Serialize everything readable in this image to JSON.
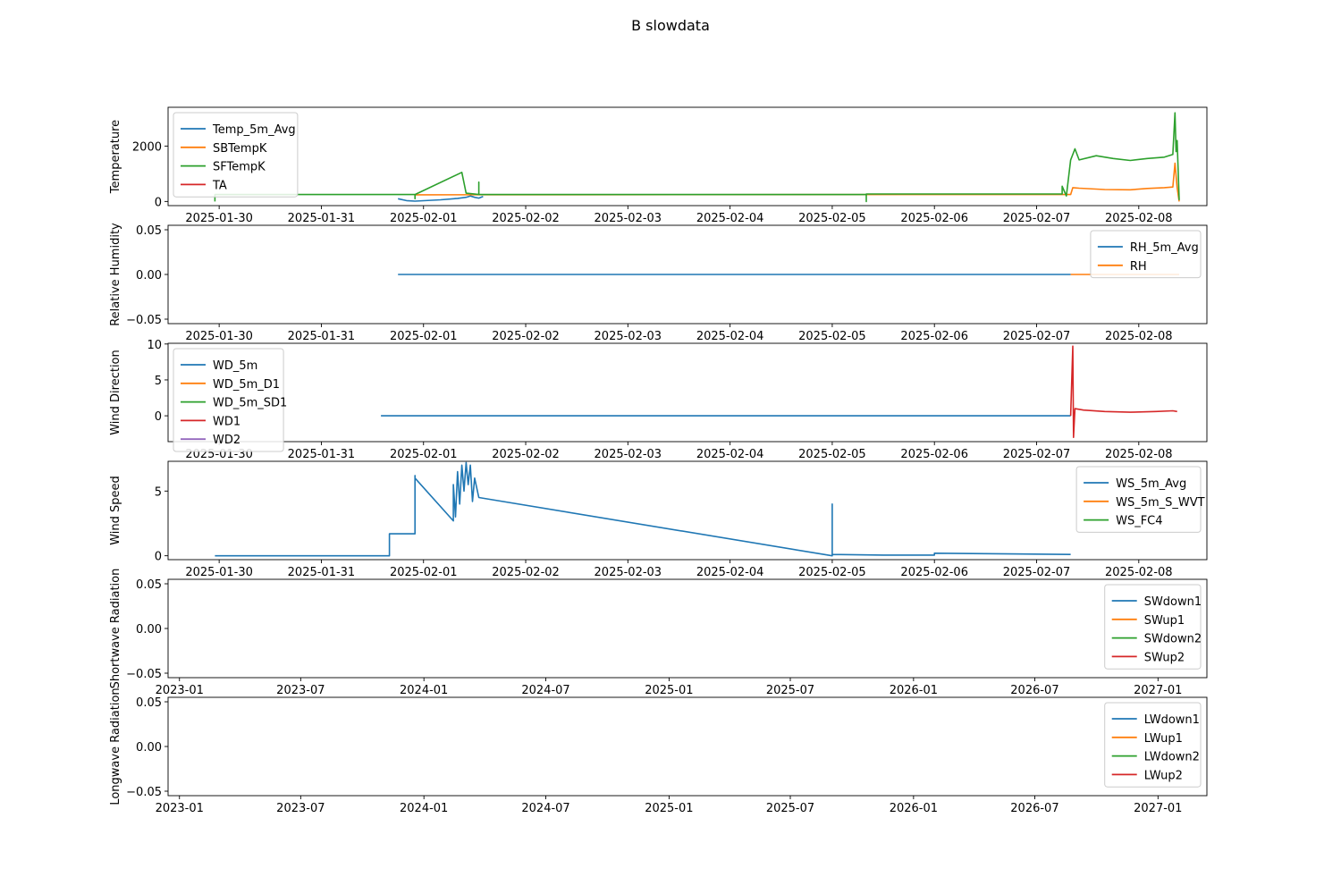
{
  "title": "B slowdata",
  "chart_data": [
    {
      "type": "line",
      "ylabel": "Temperature",
      "x_kind": "date",
      "xlim": [
        "2025-01-29T12:00",
        "2025-02-08T16:00"
      ],
      "xticks": [
        "2025-01-30",
        "2025-01-31",
        "2025-02-01",
        "2025-02-02",
        "2025-02-03",
        "2025-02-04",
        "2025-02-05",
        "2025-02-06",
        "2025-02-07",
        "2025-02-08"
      ],
      "ylim": [
        -150,
        3400
      ],
      "yticks": [
        0,
        2000
      ],
      "ytick_labels": [
        "0",
        "2000"
      ],
      "legend": "top-left",
      "series": [
        {
          "name": "Temp_5m_Avg",
          "color": "#1f77b4",
          "points": [
            [
              "2025-01-31T18:00",
              100
            ],
            [
              "2025-01-31T20:00",
              30
            ],
            [
              "2025-01-31T22:00",
              10
            ],
            [
              "2025-02-01T04:00",
              60
            ],
            [
              "2025-02-01T08:00",
              110
            ],
            [
              "2025-02-01T10:00",
              150
            ],
            [
              "2025-02-01T11:00",
              200
            ],
            [
              "2025-02-01T12:00",
              150
            ],
            [
              "2025-02-01T13:00",
              120
            ],
            [
              "2025-02-01T14:00",
              180
            ]
          ]
        },
        {
          "name": "SBTempK",
          "color": "#ff7f0e",
          "points": [
            [
              "2025-01-31T22:00",
              240
            ],
            [
              "2025-02-06T00:00",
              250
            ],
            [
              "2025-02-07T08:00",
              250
            ],
            [
              "2025-02-07T08:30",
              500
            ],
            [
              "2025-02-07T10:00",
              480
            ],
            [
              "2025-02-07T16:00",
              430
            ],
            [
              "2025-02-07T22:00",
              420
            ],
            [
              "2025-02-08T02:00",
              470
            ],
            [
              "2025-02-08T06:00",
              500
            ],
            [
              "2025-02-08T08:00",
              520
            ],
            [
              "2025-02-08T08:30",
              1380
            ],
            [
              "2025-02-08T09:00",
              500
            ],
            [
              "2025-02-08T09:30",
              0
            ]
          ]
        },
        {
          "name": "SFTempK",
          "color": "#2ca02c",
          "points": [
            [
              "2025-01-29T23:00",
              0
            ],
            [
              "2025-01-29T23:00",
              250
            ],
            [
              "2025-01-31T22:00",
              250
            ],
            [
              "2025-01-31T22:00",
              100
            ],
            [
              "2025-01-31T22:00",
              250
            ],
            [
              "2025-02-01T09:00",
              1050
            ],
            [
              "2025-02-01T10:00",
              300
            ],
            [
              "2025-02-01T13:00",
              250
            ],
            [
              "2025-02-01T13:00",
              700
            ],
            [
              "2025-02-01T13:00",
              250
            ],
            [
              "2025-02-05T08:00",
              250
            ],
            [
              "2025-02-05T08:00",
              0
            ],
            [
              "2025-02-05T08:00",
              270
            ],
            [
              "2025-02-06T00:00",
              270
            ],
            [
              "2025-02-07T06:00",
              270
            ],
            [
              "2025-02-07T06:00",
              550
            ],
            [
              "2025-02-07T07:00",
              200
            ],
            [
              "2025-02-07T08:00",
              1500
            ],
            [
              "2025-02-07T09:00",
              1900
            ],
            [
              "2025-02-07T10:00",
              1500
            ],
            [
              "2025-02-07T14:00",
              1650
            ],
            [
              "2025-02-07T18:00",
              1550
            ],
            [
              "2025-02-07T22:00",
              1480
            ],
            [
              "2025-02-08T02:00",
              1550
            ],
            [
              "2025-02-08T06:00",
              1600
            ],
            [
              "2025-02-08T08:00",
              1700
            ],
            [
              "2025-02-08T08:30",
              3200
            ],
            [
              "2025-02-08T08:45",
              1800
            ],
            [
              "2025-02-08T09:00",
              2200
            ],
            [
              "2025-02-08T09:30",
              50
            ]
          ]
        },
        {
          "name": "TA",
          "color": "#d62728",
          "points": []
        }
      ]
    },
    {
      "type": "line",
      "ylabel": "Relative Humidity",
      "x_kind": "date",
      "xlim": [
        "2025-01-29T12:00",
        "2025-02-08T16:00"
      ],
      "xticks": [
        "2025-01-30",
        "2025-01-31",
        "2025-02-01",
        "2025-02-02",
        "2025-02-03",
        "2025-02-04",
        "2025-02-05",
        "2025-02-06",
        "2025-02-07",
        "2025-02-08"
      ],
      "ylim": [
        -0.055,
        0.055
      ],
      "yticks": [
        -0.05,
        0,
        0.05
      ],
      "ytick_labels": [
        "−0.05",
        "0.00",
        "0.05"
      ],
      "legend": "top-right",
      "series": [
        {
          "name": "RH_5m_Avg",
          "color": "#1f77b4",
          "points": [
            [
              "2025-01-31T18:00",
              0
            ],
            [
              "2025-02-07T08:00",
              0
            ]
          ]
        },
        {
          "name": "RH",
          "color": "#ff7f0e",
          "points": [
            [
              "2025-02-07T08:00",
              0
            ],
            [
              "2025-02-08T09:30",
              0
            ]
          ]
        }
      ]
    },
    {
      "type": "line",
      "ylabel": "Wind Direction",
      "x_kind": "date",
      "xlim": [
        "2025-01-29T12:00",
        "2025-02-08T16:00"
      ],
      "xticks": [
        "2025-01-30",
        "2025-01-31",
        "2025-02-01",
        "2025-02-02",
        "2025-02-03",
        "2025-02-04",
        "2025-02-05",
        "2025-02-06",
        "2025-02-07",
        "2025-02-08"
      ],
      "ylim": [
        -3.6,
        10.1
      ],
      "yticks": [
        0,
        5,
        10
      ],
      "ytick_labels": [
        "0",
        "5",
        "10"
      ],
      "legend": "top-left",
      "series": [
        {
          "name": "WD_5m",
          "color": "#1f77b4",
          "points": [
            [
              "2025-01-31T14:00",
              0
            ],
            [
              "2025-02-07T08:00",
              0
            ]
          ]
        },
        {
          "name": "WD_5m_D1",
          "color": "#ff7f0e",
          "points": []
        },
        {
          "name": "WD_5m_SD1",
          "color": "#2ca02c",
          "points": []
        },
        {
          "name": "WD1",
          "color": "#d62728",
          "points": [
            [
              "2025-02-07T08:00",
              0
            ],
            [
              "2025-02-07T08:30",
              9.7
            ],
            [
              "2025-02-07T08:40",
              -3.0
            ],
            [
              "2025-02-07T09:00",
              1.0
            ],
            [
              "2025-02-07T11:00",
              0.8
            ],
            [
              "2025-02-07T16:00",
              0.6
            ],
            [
              "2025-02-07T22:00",
              0.5
            ],
            [
              "2025-02-08T04:00",
              0.6
            ],
            [
              "2025-02-08T08:00",
              0.7
            ],
            [
              "2025-02-08T09:00",
              0.6
            ]
          ]
        },
        {
          "name": "WD2",
          "color": "#9467bd",
          "points": []
        }
      ]
    },
    {
      "type": "line",
      "ylabel": "Wind Speed",
      "x_kind": "date",
      "xlim": [
        "2025-01-29T12:00",
        "2025-02-08T16:00"
      ],
      "xticks": [
        "2025-01-30",
        "2025-01-31",
        "2025-02-01",
        "2025-02-02",
        "2025-02-03",
        "2025-02-04",
        "2025-02-05",
        "2025-02-06",
        "2025-02-07",
        "2025-02-08"
      ],
      "ylim": [
        -0.3,
        7.3
      ],
      "yticks": [
        0,
        5
      ],
      "ytick_labels": [
        "0",
        "5"
      ],
      "legend": "top-right",
      "series": [
        {
          "name": "WS_5m_Avg",
          "color": "#1f77b4",
          "points": [
            [
              "2025-01-29T23:00",
              0
            ],
            [
              "2025-01-31T16:00",
              0
            ],
            [
              "2025-01-31T16:00",
              1.7
            ],
            [
              "2025-01-31T22:00",
              1.7
            ],
            [
              "2025-01-31T22:00",
              6.2
            ],
            [
              "2025-01-31T22:00",
              5.0
            ],
            [
              "2025-01-31T22:00",
              6.0
            ],
            [
              "2025-02-01T07:00",
              2.7
            ],
            [
              "2025-02-01T07:00",
              5.5
            ],
            [
              "2025-02-01T07:30",
              3.0
            ],
            [
              "2025-02-01T08:00",
              6.5
            ],
            [
              "2025-02-01T08:30",
              4.0
            ],
            [
              "2025-02-01T09:00",
              7.0
            ],
            [
              "2025-02-01T09:30",
              5.0
            ],
            [
              "2025-02-01T10:00",
              7.2
            ],
            [
              "2025-02-01T10:30",
              5.5
            ],
            [
              "2025-02-01T11:00",
              7.0
            ],
            [
              "2025-02-01T11:30",
              4.2
            ],
            [
              "2025-02-01T12:00",
              6.0
            ],
            [
              "2025-02-01T13:00",
              4.5
            ],
            [
              "2025-02-05T00:00",
              0
            ],
            [
              "2025-02-05T00:00",
              4.0
            ],
            [
              "2025-02-05T00:00",
              0.1
            ],
            [
              "2025-02-05T12:00",
              0.05
            ],
            [
              "2025-02-06T00:00",
              0.05
            ],
            [
              "2025-02-06T00:00",
              0.2
            ],
            [
              "2025-02-07T08:00",
              0.1
            ]
          ]
        },
        {
          "name": "WS_5m_S_WVT",
          "color": "#ff7f0e",
          "points": []
        },
        {
          "name": "WS_FC4",
          "color": "#2ca02c",
          "points": []
        }
      ]
    },
    {
      "type": "line",
      "ylabel": "Shortwave Radiation",
      "x_kind": "date",
      "xlim": [
        "2022-12-15",
        "2027-03-15"
      ],
      "xticks": [
        "2023-01",
        "2023-07",
        "2024-01",
        "2024-07",
        "2025-01",
        "2025-07",
        "2026-01",
        "2026-07",
        "2027-01"
      ],
      "ylim": [
        -0.055,
        0.055
      ],
      "yticks": [
        -0.05,
        0,
        0.05
      ],
      "ytick_labels": [
        "−0.05",
        "0.00",
        "0.05"
      ],
      "legend": "top-right",
      "series": [
        {
          "name": "SWdown1",
          "color": "#1f77b4",
          "points": []
        },
        {
          "name": "SWup1",
          "color": "#ff7f0e",
          "points": []
        },
        {
          "name": "SWdown2",
          "color": "#2ca02c",
          "points": []
        },
        {
          "name": "SWup2",
          "color": "#d62728",
          "points": []
        }
      ]
    },
    {
      "type": "line",
      "ylabel": "Longwave Radiation",
      "x_kind": "date",
      "xlim": [
        "2022-12-15",
        "2027-03-15"
      ],
      "xticks": [
        "2023-01",
        "2023-07",
        "2024-01",
        "2024-07",
        "2025-01",
        "2025-07",
        "2026-01",
        "2026-07",
        "2027-01"
      ],
      "ylim": [
        -0.055,
        0.055
      ],
      "yticks": [
        -0.05,
        0,
        0.05
      ],
      "ytick_labels": [
        "−0.05",
        "0.00",
        "0.05"
      ],
      "legend": "top-right",
      "series": [
        {
          "name": "LWdown1",
          "color": "#1f77b4",
          "points": []
        },
        {
          "name": "LWup1",
          "color": "#ff7f0e",
          "points": []
        },
        {
          "name": "LWdown2",
          "color": "#2ca02c",
          "points": []
        },
        {
          "name": "LWup2",
          "color": "#d62728",
          "points": []
        }
      ]
    }
  ]
}
